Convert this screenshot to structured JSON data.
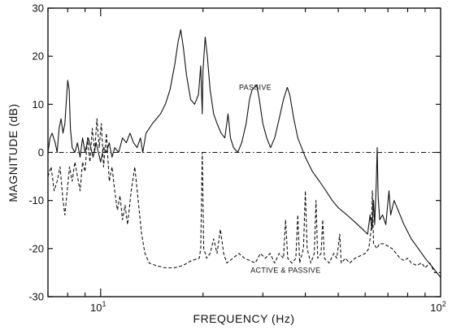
{
  "chart_data": {
    "type": "line",
    "title": "",
    "xlabel": "FREQUENCY (Hz)",
    "ylabel": "MAGNITUDE (dB)",
    "xscale": "log",
    "xlim": [
      7,
      100
    ],
    "ylim": [
      -30,
      30
    ],
    "grid": false,
    "legend": "none",
    "yticks": [
      {
        "value": -30,
        "label": "-30"
      },
      {
        "value": -20,
        "label": "-20"
      },
      {
        "value": -10,
        "label": "-10"
      },
      {
        "value": 0,
        "label": "0"
      },
      {
        "value": 10,
        "label": "10"
      },
      {
        "value": 20,
        "label": "20"
      },
      {
        "value": 30,
        "label": "30"
      }
    ],
    "xticks": [
      {
        "value": 10,
        "label": "10",
        "sup": "1"
      },
      {
        "value": 100,
        "label": "10",
        "sup": "2"
      }
    ],
    "annotations": [
      {
        "text": "PASSIVE",
        "x": 28.5,
        "y": 13
      },
      {
        "text": "ACTIVE & PASSIVE",
        "x": 35.0,
        "y": -25
      }
    ],
    "reference_line": {
      "y": 0,
      "style": "dash-dot"
    },
    "series": [
      {
        "style": "solid",
        "points": [
          [
            7.0,
            0
          ],
          [
            7.1,
            3
          ],
          [
            7.2,
            4
          ],
          [
            7.35,
            2
          ],
          [
            7.45,
            0
          ],
          [
            7.55,
            5
          ],
          [
            7.65,
            7
          ],
          [
            7.75,
            4
          ],
          [
            7.85,
            6
          ],
          [
            7.95,
            12
          ],
          [
            8.0,
            15
          ],
          [
            8.08,
            13
          ],
          [
            8.15,
            5
          ],
          [
            8.25,
            1
          ],
          [
            8.4,
            0
          ],
          [
            8.55,
            2
          ],
          [
            8.7,
            -1
          ],
          [
            8.85,
            3
          ],
          [
            9.0,
            0
          ],
          [
            9.2,
            3
          ],
          [
            9.35,
            1
          ],
          [
            9.5,
            -1
          ],
          [
            9.7,
            2
          ],
          [
            9.85,
            0
          ],
          [
            10.0,
            -2
          ],
          [
            10.2,
            1
          ],
          [
            10.4,
            0
          ],
          [
            10.6,
            2
          ],
          [
            10.8,
            -1
          ],
          [
            11.0,
            1
          ],
          [
            11.3,
            0
          ],
          [
            11.6,
            3
          ],
          [
            11.9,
            2
          ],
          [
            12.2,
            4
          ],
          [
            12.5,
            2
          ],
          [
            12.8,
            1
          ],
          [
            13.1,
            3
          ],
          [
            13.3,
            0
          ],
          [
            13.6,
            4
          ],
          [
            13.9,
            5
          ],
          [
            14.2,
            6
          ],
          [
            14.6,
            7
          ],
          [
            15.0,
            8
          ],
          [
            15.5,
            10
          ],
          [
            16.0,
            13
          ],
          [
            16.5,
            18
          ],
          [
            16.9,
            23
          ],
          [
            17.2,
            25.5
          ],
          [
            17.5,
            22
          ],
          [
            17.9,
            16
          ],
          [
            18.4,
            11
          ],
          [
            18.9,
            10
          ],
          [
            19.4,
            12
          ],
          [
            19.7,
            18
          ],
          [
            19.9,
            8
          ],
          [
            20.0,
            17
          ],
          [
            20.3,
            24
          ],
          [
            20.6,
            20
          ],
          [
            21.0,
            13
          ],
          [
            21.5,
            8
          ],
          [
            22.0,
            6
          ],
          [
            22.6,
            4
          ],
          [
            23.2,
            3
          ],
          [
            23.7,
            8
          ],
          [
            24.1,
            3
          ],
          [
            24.6,
            1
          ],
          [
            25.3,
            0
          ],
          [
            26.0,
            2
          ],
          [
            26.8,
            6
          ],
          [
            27.4,
            11
          ],
          [
            27.9,
            13
          ],
          [
            28.3,
            13.5
          ],
          [
            28.8,
            14
          ],
          [
            29.3,
            11
          ],
          [
            30.0,
            6
          ],
          [
            30.8,
            3
          ],
          [
            31.6,
            1
          ],
          [
            32.5,
            3
          ],
          [
            33.5,
            7
          ],
          [
            34.5,
            11
          ],
          [
            35.4,
            13.5
          ],
          [
            36.0,
            12
          ],
          [
            37.0,
            7
          ],
          [
            38.0,
            3
          ],
          [
            39.0,
            1
          ],
          [
            40.0,
            -1
          ],
          [
            42.0,
            -4
          ],
          [
            44.0,
            -6
          ],
          [
            46.0,
            -8
          ],
          [
            48.0,
            -10
          ],
          [
            50.0,
            -11.5
          ],
          [
            53.0,
            -13
          ],
          [
            56.0,
            -14.5
          ],
          [
            59.0,
            -16
          ],
          [
            61.0,
            -17
          ],
          [
            62.0,
            -13
          ],
          [
            62.8,
            -16
          ],
          [
            63.5,
            -10
          ],
          [
            64.0,
            -15
          ],
          [
            64.7,
            -6
          ],
          [
            65.1,
            1
          ],
          [
            65.5,
            -9
          ],
          [
            66.2,
            -14
          ],
          [
            67.5,
            -13
          ],
          [
            69.0,
            -15
          ],
          [
            70.5,
            -8
          ],
          [
            71.3,
            -13
          ],
          [
            73.0,
            -10
          ],
          [
            75.0,
            -12
          ],
          [
            78.0,
            -15
          ],
          [
            82.0,
            -18
          ],
          [
            86.0,
            -20
          ],
          [
            90.0,
            -22
          ],
          [
            95.0,
            -24
          ],
          [
            100.0,
            -26
          ]
        ]
      },
      {
        "style": "dashed",
        "points": [
          [
            7.0,
            -5
          ],
          [
            7.15,
            -3
          ],
          [
            7.3,
            -8
          ],
          [
            7.45,
            -6
          ],
          [
            7.6,
            -3
          ],
          [
            7.75,
            -10
          ],
          [
            7.85,
            -13
          ],
          [
            7.95,
            -9
          ],
          [
            8.1,
            -3
          ],
          [
            8.25,
            -6
          ],
          [
            8.4,
            -2
          ],
          [
            8.55,
            -5
          ],
          [
            8.7,
            -8
          ],
          [
            8.85,
            -2
          ],
          [
            9.0,
            -4
          ],
          [
            9.15,
            3
          ],
          [
            9.3,
            -2
          ],
          [
            9.45,
            5
          ],
          [
            9.6,
            0
          ],
          [
            9.75,
            7
          ],
          [
            9.9,
            1
          ],
          [
            10.05,
            6
          ],
          [
            10.2,
            -3
          ],
          [
            10.4,
            4
          ],
          [
            10.6,
            -6
          ],
          [
            10.8,
            -3
          ],
          [
            11.0,
            -8
          ],
          [
            11.2,
            -12
          ],
          [
            11.4,
            -9
          ],
          [
            11.6,
            -14
          ],
          [
            11.8,
            -11
          ],
          [
            12.0,
            -15
          ],
          [
            12.3,
            -8
          ],
          [
            12.6,
            -3
          ],
          [
            12.9,
            -10
          ],
          [
            13.2,
            -17
          ],
          [
            13.5,
            -21
          ],
          [
            13.9,
            -23
          ],
          [
            14.5,
            -23.5
          ],
          [
            15.5,
            -24
          ],
          [
            16.5,
            -24
          ],
          [
            17.5,
            -23.5
          ],
          [
            18.5,
            -22.5
          ],
          [
            19.5,
            -22
          ],
          [
            19.7,
            -20
          ],
          [
            19.9,
            0
          ],
          [
            20.1,
            -20
          ],
          [
            20.5,
            -22
          ],
          [
            21.0,
            -21
          ],
          [
            21.5,
            -18
          ],
          [
            22.0,
            -21
          ],
          [
            22.5,
            -16
          ],
          [
            23.0,
            -21
          ],
          [
            23.5,
            -23
          ],
          [
            24.5,
            -22
          ],
          [
            25.5,
            -21
          ],
          [
            26.5,
            -22
          ],
          [
            27.5,
            -22.5
          ],
          [
            28.5,
            -23
          ],
          [
            29.5,
            -21
          ],
          [
            30.5,
            -22
          ],
          [
            31.5,
            -21
          ],
          [
            32.5,
            -23
          ],
          [
            33.5,
            -21
          ],
          [
            34.5,
            -22
          ],
          [
            35.0,
            -14
          ],
          [
            35.5,
            -22
          ],
          [
            36.5,
            -23
          ],
          [
            37.5,
            -22
          ],
          [
            38.0,
            -13
          ],
          [
            38.5,
            -23
          ],
          [
            39.5,
            -20
          ],
          [
            40.0,
            -8
          ],
          [
            40.5,
            -20
          ],
          [
            41.5,
            -23
          ],
          [
            42.5,
            -21
          ],
          [
            43.0,
            -10
          ],
          [
            43.5,
            -22
          ],
          [
            44.5,
            -21
          ],
          [
            45.0,
            -14
          ],
          [
            45.5,
            -22
          ],
          [
            47.0,
            -23
          ],
          [
            48.5,
            -21
          ],
          [
            49.5,
            -22
          ],
          [
            50.5,
            -17
          ],
          [
            51.0,
            -23
          ],
          [
            52.5,
            -22
          ],
          [
            54.0,
            -23
          ],
          [
            56.0,
            -22
          ],
          [
            58.0,
            -21.5
          ],
          [
            60.0,
            -21
          ],
          [
            61.5,
            -20
          ],
          [
            62.5,
            -16
          ],
          [
            63.0,
            -8
          ],
          [
            63.5,
            -19
          ],
          [
            65.0,
            -20
          ],
          [
            66.0,
            -19
          ],
          [
            68.0,
            -19
          ],
          [
            70.0,
            -19.5
          ],
          [
            72.0,
            -20
          ],
          [
            74.0,
            -21
          ],
          [
            76.0,
            -22
          ],
          [
            78.0,
            -22.5
          ],
          [
            80.0,
            -22
          ],
          [
            82.0,
            -23
          ],
          [
            85.0,
            -23.5
          ],
          [
            88.0,
            -23
          ],
          [
            90.0,
            -24
          ],
          [
            93.0,
            -23
          ],
          [
            96.0,
            -25
          ],
          [
            100.0,
            -25
          ]
        ]
      }
    ]
  }
}
